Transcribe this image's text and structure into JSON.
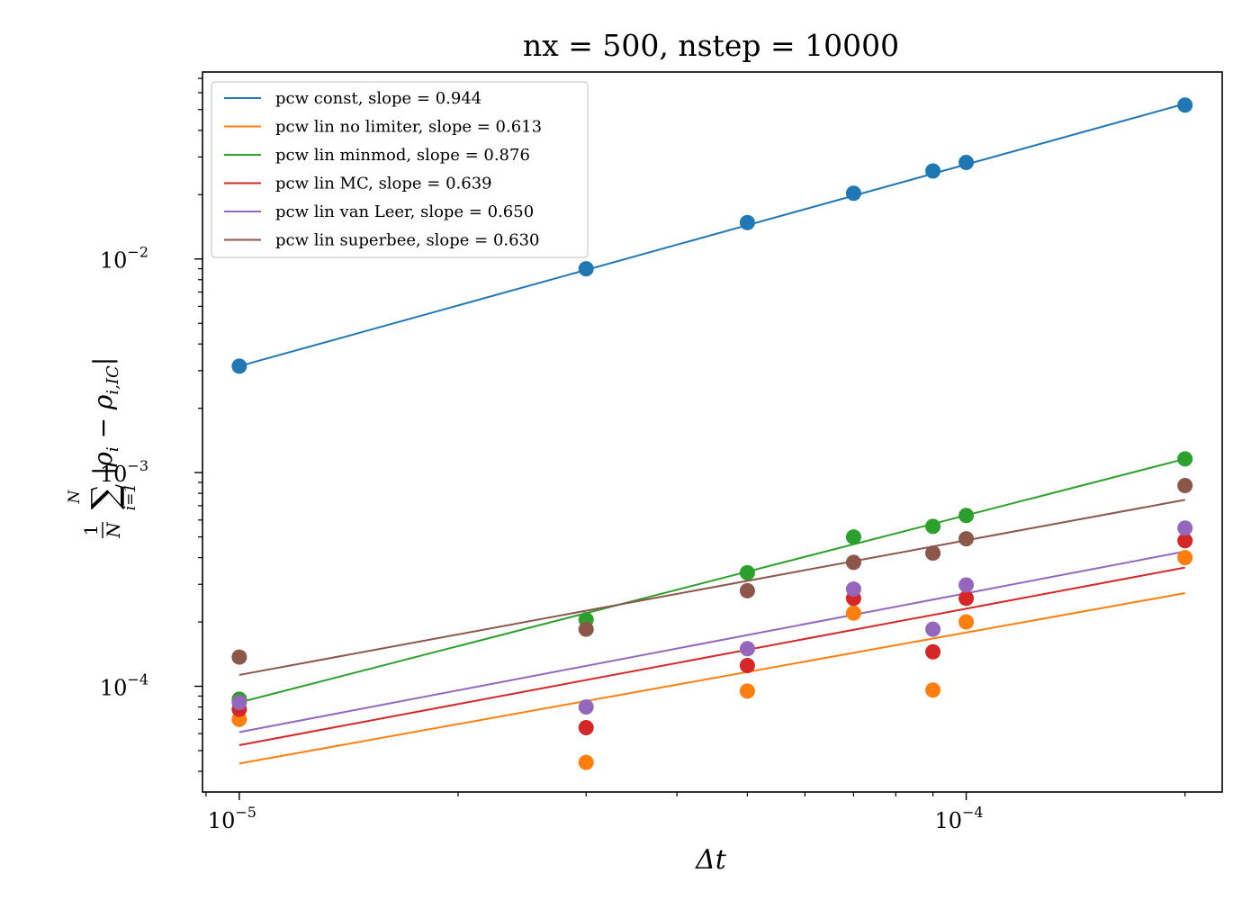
{
  "chart_data": {
    "type": "scatter",
    "title": "nx = 500, nstep = 10000",
    "xlabel": "Δt",
    "ylabel": {
      "frac_num": "1",
      "frac_den": "N",
      "sum_top": "N",
      "sum_bottom": "i=1",
      "body": "|ρ",
      "sub1": "i",
      "mid": " − ρ",
      "sub2": "i,IC",
      "end": "|"
    },
    "x_scale": "log",
    "y_scale": "log",
    "xlim": [
      8.9e-06,
      0.000225
    ],
    "ylim": [
      3.2e-05,
      0.075
    ],
    "x_ticks": [
      {
        "value": 1e-05,
        "base": "10",
        "exp": "−5"
      },
      {
        "value": 0.0001,
        "base": "10",
        "exp": "−4"
      }
    ],
    "y_ticks": [
      {
        "value": 0.0001,
        "base": "10",
        "exp": "−4"
      },
      {
        "value": 0.001,
        "base": "10",
        "exp": "−3"
      },
      {
        "value": 0.01,
        "base": "10",
        "exp": "−2"
      }
    ],
    "x": [
      1e-05,
      3e-05,
      5e-05,
      7e-05,
      9e-05,
      0.0001,
      0.0002
    ],
    "series": [
      {
        "name": "pcw const, slope = 0.944",
        "color": "#1f77b4",
        "slope": 0.944,
        "fit_at_x_min": 0.00315,
        "values": [
          0.00315,
          0.009,
          0.0148,
          0.0203,
          0.0258,
          0.0283,
          0.0525
        ]
      },
      {
        "name": "pcw lin no limiter, slope = 0.613",
        "color": "#ff7f0e",
        "slope": 0.613,
        "fit_at_x_min": 4.35e-05,
        "values": [
          7e-05,
          4.4e-05,
          9.5e-05,
          0.00022,
          9.6e-05,
          0.0002,
          0.0004
        ]
      },
      {
        "name": "pcw lin minmod, slope = 0.876",
        "color": "#2ca02c",
        "slope": 0.876,
        "fit_at_x_min": 8.4e-05,
        "values": [
          8.7e-05,
          0.000205,
          0.00034,
          0.0005,
          0.00056,
          0.00063,
          0.00116
        ]
      },
      {
        "name": "pcw lin MC, slope = 0.639",
        "color": "#d62728",
        "slope": 0.639,
        "fit_at_x_min": 5.3e-05,
        "values": [
          7.8e-05,
          6.4e-05,
          0.000125,
          0.000258,
          0.000145,
          0.000258,
          0.00048
        ]
      },
      {
        "name": "pcw lin van Leer, slope = 0.650",
        "color": "#9467bd",
        "slope": 0.65,
        "fit_at_x_min": 6.1e-05,
        "values": [
          8.4e-05,
          8e-05,
          0.00015,
          0.000285,
          0.000185,
          0.000298,
          0.00055
        ]
      },
      {
        "name": "pcw lin superbee, slope = 0.630",
        "color": "#8c564b",
        "slope": 0.63,
        "fit_at_x_min": 0.000113,
        "values": [
          0.000137,
          0.000185,
          0.00028,
          0.00038,
          0.00042,
          0.00049,
          0.00087
        ]
      }
    ],
    "legend_position": "upper-left",
    "grid": false
  }
}
